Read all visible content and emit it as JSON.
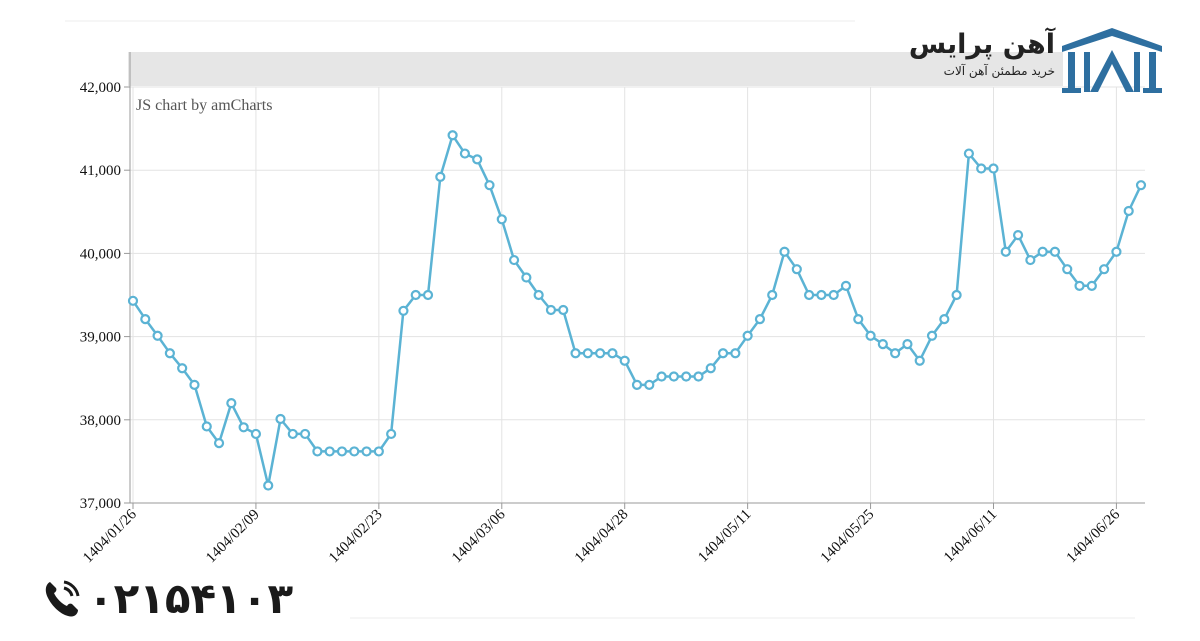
{
  "brand": {
    "name": "آهن پرایس",
    "tagline": "خرید مطمئن آهن آلات",
    "logo_color": "#2e6fa0",
    "phone": "۰۲۱۵۴۱۰۳"
  },
  "chart_data": {
    "type": "line",
    "title": "",
    "xlabel": "",
    "ylabel": "",
    "watermark": "JS chart by amCharts",
    "line_color": "#5bb3d4",
    "ylim": [
      37000,
      42000
    ],
    "yticks": [
      "37,000",
      "38,000",
      "39,000",
      "40,000",
      "41,000",
      "42,000"
    ],
    "xticks": [
      "1404/01/26",
      "1404/02/09",
      "1404/02/23",
      "1404/03/06",
      "1404/04/28",
      "1404/05/11",
      "1404/05/25",
      "1404/06/11",
      "1404/06/26"
    ],
    "grid": true,
    "series": [
      {
        "values": [
          39430,
          39210,
          39010,
          38800,
          38620,
          38420,
          37920,
          37720,
          38200,
          37910,
          37830,
          37210,
          38010,
          37830,
          37830,
          37620,
          37620,
          37620,
          37620,
          37620,
          37620,
          37830,
          39310,
          39500,
          39500,
          40920,
          41420,
          41200,
          41130,
          40820,
          40410,
          39920,
          39710,
          39500,
          39320,
          39320,
          38800,
          38800,
          38800,
          38800,
          38710,
          38420,
          38420,
          38520,
          38520,
          38520,
          38520,
          38620,
          38800,
          38800,
          39010,
          39210,
          39500,
          40020,
          39810,
          39500,
          39500,
          39500,
          39610,
          39210,
          39010,
          38910,
          38800,
          38910,
          38710,
          39010,
          39210,
          39500,
          41200,
          41020,
          41020,
          40020,
          40220,
          39920,
          40020,
          40020,
          39810,
          39610,
          39610,
          39810,
          40020,
          40510,
          40820
        ]
      }
    ]
  }
}
